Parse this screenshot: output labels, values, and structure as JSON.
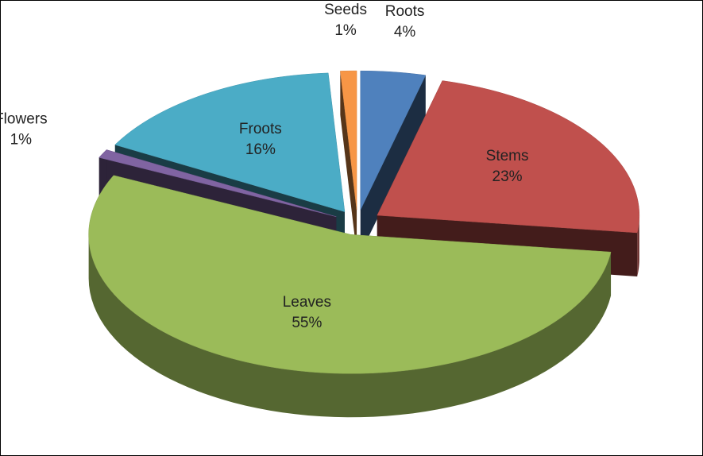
{
  "chart_data": {
    "type": "pie",
    "categories": [
      "Roots",
      "Stems",
      "Leaves",
      "Flowers",
      "Froots",
      "Seeds"
    ],
    "values": [
      4,
      23,
      55,
      1,
      16,
      1
    ],
    "value_labels": [
      "4%",
      "23%",
      "55%",
      "1%",
      "16%",
      "1%"
    ],
    "colors": [
      "#4f81bd",
      "#c0504d",
      "#9bbb59",
      "#8064a2",
      "#4bacc6",
      "#f79646"
    ]
  }
}
